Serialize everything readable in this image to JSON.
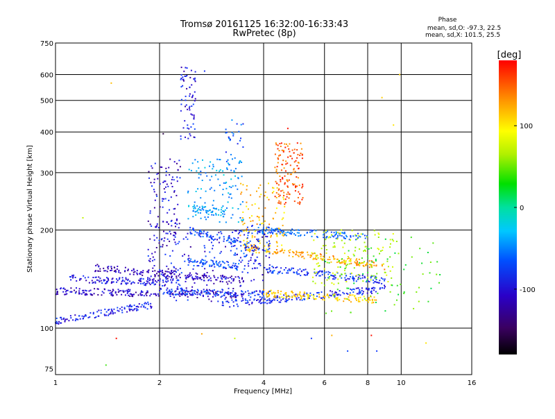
{
  "chart_data": {
    "type": "scatter",
    "title": "Tromsø 20161125 16:32:00-16:33:43",
    "subtitle": "RwPretec (8p)",
    "xlabel": "Frequency [MHz]",
    "ylabel": "Stationary phase Virtual Height [km]",
    "x_scale": "log",
    "y_scale": "log",
    "xlim": [
      1,
      16
    ],
    "ylim": [
      72,
      750
    ],
    "x_ticks": [
      1,
      2,
      4,
      6,
      8,
      10,
      16
    ],
    "y_ticks": [
      75,
      100,
      200,
      300,
      400,
      500,
      600,
      750
    ],
    "x_gridlines": [
      2,
      4,
      6,
      8,
      10
    ],
    "y_gridlines": [
      100,
      200,
      300,
      400,
      500,
      600
    ],
    "grid": true,
    "phase_info": {
      "heading": "Phase",
      "line_o": "mean, sd,O: -97.3, 22.5",
      "line_x": "mean, sd,X: 101.5, 25.5"
    },
    "colorbar": {
      "label": "[deg]",
      "range": [
        -180,
        180
      ],
      "ticks": [
        100,
        0,
        -100
      ],
      "placement": "right"
    },
    "traces": [
      {
        "f": [
          1.0,
          1.9
        ],
        "h": [
          105,
          118
        ],
        "phase": -105
      },
      {
        "f": [
          1.0,
          3.5
        ],
        "h": [
          130,
          126
        ],
        "phase": -120
      },
      {
        "f": [
          1.1,
          2.3
        ],
        "h": [
          142,
          137
        ],
        "phase": -110
      },
      {
        "f": [
          1.3,
          3.5
        ],
        "h": [
          153,
          140
        ],
        "phase": -125
      },
      {
        "f": [
          2.0,
          4.0
        ],
        "h": [
          130,
          127
        ],
        "phase": -95
      },
      {
        "f": [
          3.0,
          9.0
        ],
        "h": [
          118,
          132
        ],
        "phase": -100
      },
      {
        "f": [
          4.0,
          9.0
        ],
        "h": [
          152,
          140
        ],
        "phase": -95
      },
      {
        "f": [
          4.0,
          8.5
        ],
        "h": [
          128,
          122
        ],
        "phase": 110
      },
      {
        "f": [
          3.5,
          9.0
        ],
        "h": [
          178,
          155
        ],
        "phase": 125
      },
      {
        "f": [
          3.8,
          8.0
        ],
        "h": [
          200,
          190
        ],
        "phase": -80
      },
      {
        "f": [
          2.4,
          3.4
        ],
        "h": [
          160,
          155
        ],
        "phase": -85
      },
      {
        "f": [
          2.5,
          3.1
        ],
        "h": [
          233,
          225
        ],
        "phase": -60
      },
      {
        "f": [
          2.4,
          3.6
        ],
        "h": [
          200,
          180
        ],
        "phase": -90
      }
    ],
    "clusters": [
      {
        "f": [
          2.3,
          2.55
        ],
        "h": [
          380,
          640
        ],
        "phase": -110,
        "n": 70
      },
      {
        "f": [
          1.85,
          2.3
        ],
        "h": [
          140,
          330
        ],
        "phase": -115,
        "n": 170
      },
      {
        "f": [
          2.4,
          3.5
        ],
        "h": [
          210,
          330
        ],
        "phase": -55,
        "n": 110
      },
      {
        "f": [
          3.1,
          3.5
        ],
        "h": [
          300,
          440
        ],
        "phase": -80,
        "n": 30
      },
      {
        "f": [
          4.3,
          5.2
        ],
        "h": [
          240,
          370
        ],
        "phase": 150,
        "n": 140
      },
      {
        "f": [
          3.4,
          4.6
        ],
        "h": [
          170,
          280
        ],
        "phase": 115,
        "n": 110
      },
      {
        "f": [
          3.2,
          4.2
        ],
        "h": [
          150,
          210
        ],
        "phase": -95,
        "n": 90
      },
      {
        "f": [
          5.5,
          9.5
        ],
        "h": [
          135,
          200
        ],
        "phase": 60,
        "n": 120
      },
      {
        "f": [
          6.0,
          13.0
        ],
        "h": [
          110,
          190
        ],
        "phase": 20,
        "n": 90
      },
      {
        "f": [
          2.2,
          4.2
        ],
        "h": [
          120,
          200
        ],
        "phase": -110,
        "n": 130
      }
    ],
    "sparse_points": [
      {
        "f": 1.45,
        "h": 565,
        "phase": 115
      },
      {
        "f": 1.2,
        "h": 218,
        "phase": 60
      },
      {
        "f": 1.5,
        "h": 93,
        "phase": 175
      },
      {
        "f": 1.4,
        "h": 77,
        "phase": 20
      },
      {
        "f": 2.65,
        "h": 96,
        "phase": 125
      },
      {
        "f": 3.3,
        "h": 93,
        "phase": 60
      },
      {
        "f": 5.5,
        "h": 93,
        "phase": -95
      },
      {
        "f": 6.3,
        "h": 95,
        "phase": 120
      },
      {
        "f": 7.0,
        "h": 85,
        "phase": -90
      },
      {
        "f": 8.2,
        "h": 95,
        "phase": 175
      },
      {
        "f": 8.5,
        "h": 85,
        "phase": -95
      },
      {
        "f": 11.8,
        "h": 90,
        "phase": 100
      },
      {
        "f": 9.5,
        "h": 420,
        "phase": 100
      },
      {
        "f": 8.8,
        "h": 510,
        "phase": 110
      },
      {
        "f": 9.9,
        "h": 600,
        "phase": 110
      },
      {
        "f": 2.7,
        "h": 615,
        "phase": -100
      },
      {
        "f": 2.05,
        "h": 395,
        "phase": -160
      },
      {
        "f": 4.7,
        "h": 410,
        "phase": 175
      }
    ]
  }
}
